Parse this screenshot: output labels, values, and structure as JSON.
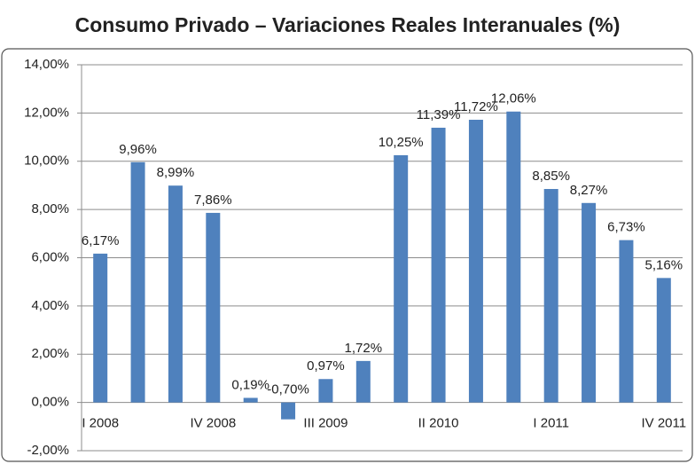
{
  "chart_data": {
    "type": "bar",
    "title": "Consumo Privado  – Variaciones Reales Interanuales (%)",
    "categories": [
      "I 2008",
      null,
      null,
      "IV 2008",
      null,
      null,
      "III 2009",
      null,
      null,
      "II 2010",
      null,
      null,
      "I 2011",
      null,
      null,
      "IV 2011"
    ],
    "values": [
      6.17,
      9.96,
      8.99,
      7.86,
      0.19,
      -0.7,
      0.97,
      1.72,
      10.25,
      11.39,
      11.72,
      12.06,
      8.85,
      8.27,
      6.73,
      5.16
    ],
    "value_labels": [
      "6,17%",
      "9,96%",
      "8,99%",
      "7,86%",
      "0,19%",
      "-0,70%",
      "0,97%",
      "1,72%",
      "10,25%",
      "11,39%",
      "11,72%",
      "12,06%",
      "8,85%",
      "8,27%",
      "6,73%",
      "5,16%"
    ],
    "color": "#4f81bd",
    "ylim": [
      -2,
      14
    ],
    "yticks": [
      {
        "value": -2,
        "label": "-2,00%"
      },
      {
        "value": 0,
        "label": "0,00%"
      },
      {
        "value": 2,
        "label": "2,00%"
      },
      {
        "value": 4,
        "label": "4,00%"
      },
      {
        "value": 6,
        "label": "6,00%"
      },
      {
        "value": 8,
        "label": "8,00%"
      },
      {
        "value": 10,
        "label": "10,00%"
      },
      {
        "value": 12,
        "label": "12,00%"
      },
      {
        "value": 14,
        "label": "14,00%"
      }
    ],
    "grid": true
  }
}
